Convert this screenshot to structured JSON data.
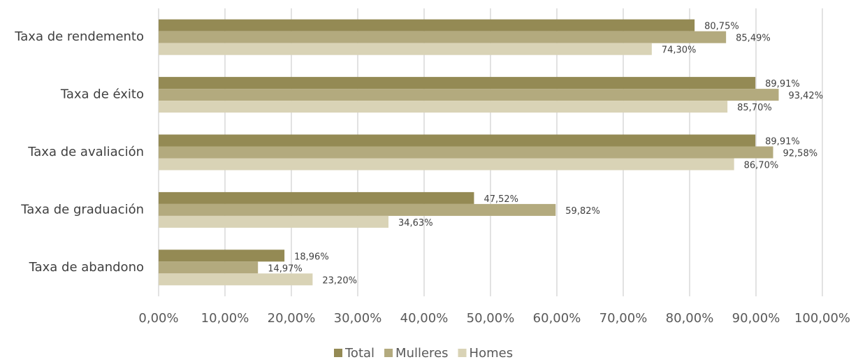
{
  "chart_data": {
    "type": "hbar",
    "categories": [
      "Taxa de rendemento",
      "Taxa de éxito",
      "Taxa de avaliación",
      "Taxa de graduación",
      "Taxa de abandono"
    ],
    "series": [
      {
        "name": "Total",
        "color": "#948a54",
        "values": [
          80.75,
          89.91,
          89.91,
          47.52,
          18.96
        ],
        "value_labels": [
          "80,75%",
          "89,91%",
          "89,91%",
          "47,52%",
          "18,96%"
        ]
      },
      {
        "name": "Mulleres",
        "color": "#b3aa7e",
        "values": [
          85.49,
          93.42,
          92.58,
          59.82,
          14.97
        ],
        "value_labels": [
          "85,49%",
          "93,42%",
          "92,58%",
          "59,82%",
          "14,97%"
        ]
      },
      {
        "name": "Homes",
        "color": "#d9d3b6",
        "values": [
          74.3,
          85.7,
          86.7,
          34.63,
          23.2
        ],
        "value_labels": [
          "74,30%",
          "85,70%",
          "86,70%",
          "34,63%",
          "23,20%"
        ]
      }
    ],
    "xlim": [
      0,
      100
    ],
    "xticks": [
      {
        "value": 0,
        "label": "0,00%"
      },
      {
        "value": 10,
        "label": "10,00%"
      },
      {
        "value": 20,
        "label": "20,00%"
      },
      {
        "value": 30,
        "label": "30,00%"
      },
      {
        "value": 40,
        "label": "40,00%"
      },
      {
        "value": 50,
        "label": "50,00%"
      },
      {
        "value": 60,
        "label": "60,00%"
      },
      {
        "value": 70,
        "label": "70,00%"
      },
      {
        "value": 80,
        "label": "80,00%"
      },
      {
        "value": 90,
        "label": "90,00%"
      },
      {
        "value": 100,
        "label": "100,00%"
      }
    ],
    "grid": true,
    "legend": "bottom"
  }
}
